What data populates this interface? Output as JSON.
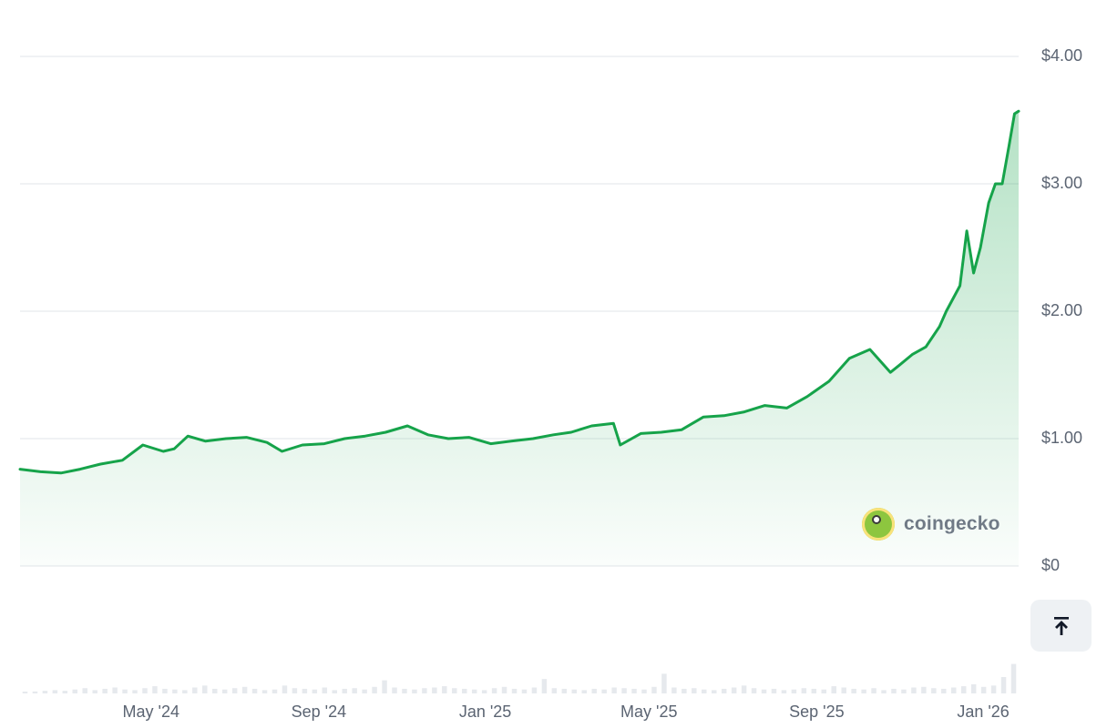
{
  "chart_data": {
    "type": "area",
    "x_ticks": [
      "May '24",
      "Sep '24",
      "Jan '25",
      "May '25",
      "Sep '25",
      "Jan '26"
    ],
    "y_ticks": [
      "$4.00",
      "$3.00",
      "$2.00",
      "$1.00",
      "$0"
    ],
    "ylim": [
      0,
      4
    ],
    "xlim": [
      "2024-01-26",
      "2026-01-27"
    ],
    "grid": true,
    "line_color": "#16a34a",
    "fill_color": "#16a34a",
    "series": [
      {
        "x": [
          "2024-01-26",
          "2024-02-10",
          "2024-02-25",
          "2024-03-10",
          "2024-03-25",
          "2024-04-10",
          "2024-04-25",
          "2024-05-10",
          "2024-05-18",
          "2024-05-28",
          "2024-06-10",
          "2024-06-25",
          "2024-07-10",
          "2024-07-25",
          "2024-08-05",
          "2024-08-20",
          "2024-09-05",
          "2024-09-20",
          "2024-10-05",
          "2024-10-20",
          "2024-11-05",
          "2024-11-20",
          "2024-12-05",
          "2024-12-20",
          "2025-01-05",
          "2025-01-20",
          "2025-02-05",
          "2025-02-20",
          "2025-03-05",
          "2025-03-20",
          "2025-04-05",
          "2025-04-10",
          "2025-04-25",
          "2025-05-10",
          "2025-05-25",
          "2025-06-10",
          "2025-06-25",
          "2025-07-10",
          "2025-07-25",
          "2025-08-10",
          "2025-08-25",
          "2025-09-10",
          "2025-09-25",
          "2025-10-10",
          "2025-10-25",
          "2025-11-01",
          "2025-11-10",
          "2025-11-20",
          "2025-11-30",
          "2025-12-05",
          "2025-12-15",
          "2025-12-20",
          "2025-12-25",
          "2025-12-30",
          "2026-01-05",
          "2026-01-10",
          "2026-01-15",
          "2026-01-20",
          "2026-01-24",
          "2026-01-27"
        ],
        "y": [
          0.76,
          0.74,
          0.73,
          0.76,
          0.8,
          0.83,
          0.95,
          0.9,
          0.92,
          1.02,
          0.98,
          1.0,
          1.01,
          0.97,
          0.9,
          0.95,
          0.96,
          1.0,
          1.02,
          1.05,
          1.1,
          1.03,
          1.0,
          1.01,
          0.96,
          0.98,
          1.0,
          1.03,
          1.05,
          1.1,
          1.12,
          0.95,
          1.04,
          1.05,
          1.07,
          1.17,
          1.18,
          1.21,
          1.26,
          1.24,
          1.33,
          1.45,
          1.63,
          1.7,
          1.52,
          1.58,
          1.66,
          1.72,
          1.88,
          2.0,
          2.2,
          2.63,
          2.3,
          2.5,
          2.85,
          3.0,
          3.0,
          3.3,
          3.55,
          3.57
        ]
      }
    ],
    "volume": [
      0.02,
      0.03,
      0.04,
      0.05,
      0.04,
      0.06,
      0.08,
      0.05,
      0.07,
      0.09,
      0.06,
      0.05,
      0.08,
      0.11,
      0.07,
      0.06,
      0.05,
      0.09,
      0.12,
      0.07,
      0.06,
      0.08,
      0.1,
      0.07,
      0.05,
      0.06,
      0.12,
      0.08,
      0.07,
      0.06,
      0.09,
      0.05,
      0.07,
      0.08,
      0.06,
      0.1,
      0.2,
      0.09,
      0.07,
      0.06,
      0.08,
      0.09,
      0.11,
      0.08,
      0.07,
      0.06,
      0.05,
      0.08,
      0.1,
      0.07,
      0.06,
      0.09,
      0.22,
      0.08,
      0.07,
      0.06,
      0.05,
      0.07,
      0.06,
      0.09,
      0.08,
      0.07,
      0.06,
      0.1,
      0.3,
      0.09,
      0.07,
      0.08,
      0.06,
      0.05,
      0.07,
      0.09,
      0.12,
      0.08,
      0.06,
      0.07,
      0.05,
      0.06,
      0.08,
      0.07,
      0.06,
      0.11,
      0.09,
      0.07,
      0.06,
      0.08,
      0.05,
      0.07,
      0.06,
      0.09,
      0.1,
      0.08,
      0.07,
      0.09,
      0.11,
      0.14,
      0.1,
      0.12,
      0.25,
      0.45
    ]
  },
  "watermark": {
    "text": "coingecko"
  },
  "buttons": {
    "scroll_top_icon": "arrow-to-top-icon"
  }
}
